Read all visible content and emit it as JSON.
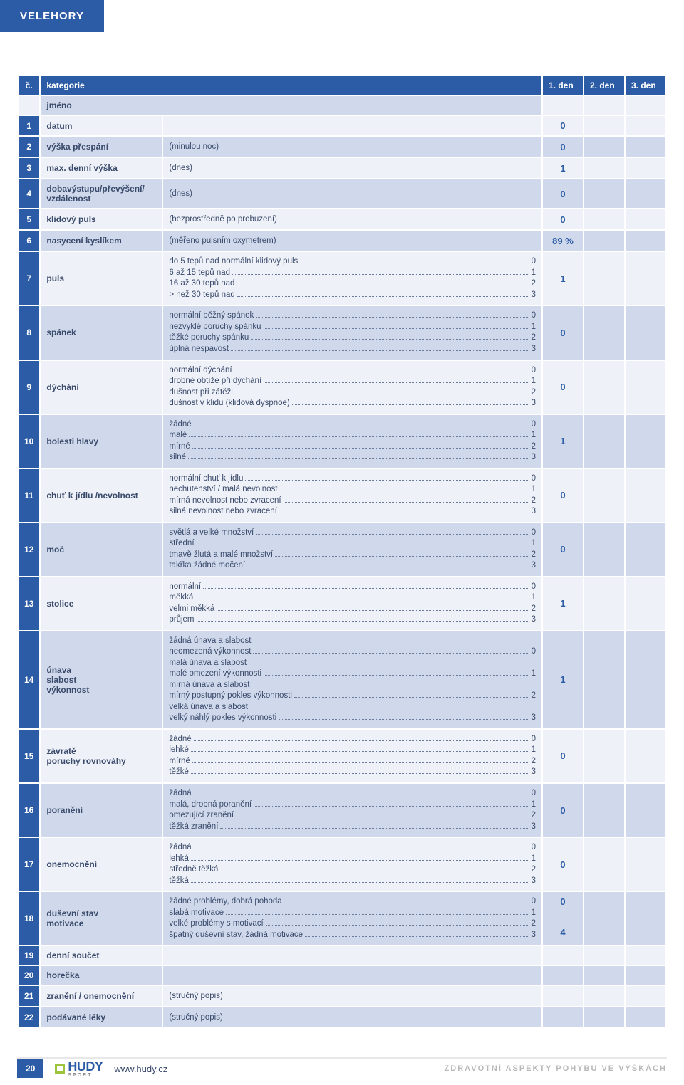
{
  "page_title": "VELEHORY",
  "header": {
    "c": "č.",
    "kat": "kategorie",
    "d1": "1. den",
    "d2": "2. den",
    "d3": "3. den"
  },
  "jmeno": "jméno",
  "rows": [
    {
      "n": "1",
      "cat": "datum",
      "desc_plain": "",
      "val": "0"
    },
    {
      "n": "2",
      "cat": "výška přespání",
      "desc_plain": "(minulou noc)",
      "val": "0"
    },
    {
      "n": "3",
      "cat": "max. denní výška",
      "desc_plain": "(dnes)",
      "val": "1"
    },
    {
      "n": "4",
      "cat": "dobavýstupu/převýšení/\nvzdálenost",
      "desc_plain": "(dnes)",
      "val": "0"
    },
    {
      "n": "5",
      "cat": "klidový puls",
      "desc_plain": "(bezprostředně po probuzení)",
      "val": "0"
    },
    {
      "n": "6",
      "cat": "nasycení kyslíkem",
      "desc_plain": "(měřeno pulsním oxymetrem)",
      "val": "89 %"
    },
    {
      "n": "7",
      "cat": "puls",
      "lines": [
        {
          "l": "do 5 tepů nad normální klidový puls",
          "v": "0"
        },
        {
          "l": "6 až 15 tepů nad",
          "v": "1"
        },
        {
          "l": "16 až 30 tepů nad",
          "v": "2"
        },
        {
          "l": "> než 30 tepů nad",
          "v": "3"
        }
      ],
      "val": "1"
    },
    {
      "n": "8",
      "cat": "spánek",
      "lines": [
        {
          "l": "normální běžný spánek",
          "v": "0"
        },
        {
          "l": "nezvyklé poruchy spánku",
          "v": "1"
        },
        {
          "l": "těžké poruchy spánku",
          "v": "2"
        },
        {
          "l": "úplná nespavost",
          "v": "3"
        }
      ],
      "val": "0"
    },
    {
      "n": "9",
      "cat": "dýchání",
      "lines": [
        {
          "l": "normální dýchání",
          "v": "0"
        },
        {
          "l": "drobné obtíže při dýchání",
          "v": "1"
        },
        {
          "l": "dušnost při zátěži",
          "v": "2"
        },
        {
          "l": "dušnost v klidu (klidová dyspnoe)",
          "v": "3"
        }
      ],
      "val": "0"
    },
    {
      "n": "10",
      "cat": "bolesti hlavy",
      "lines": [
        {
          "l": "žádné",
          "v": "0"
        },
        {
          "l": "malé",
          "v": "1"
        },
        {
          "l": "mírné",
          "v": "2"
        },
        {
          "l": "silné",
          "v": "3"
        }
      ],
      "val": "1"
    },
    {
      "n": "11",
      "cat": "chuť k jídlu /nevolnost",
      "lines": [
        {
          "l": "normální chuť k jídlu",
          "v": "0"
        },
        {
          "l": "nechutenství / malá nevolnost",
          "v": "1"
        },
        {
          "l": "mírná nevolnost nebo zvracení",
          "v": "2"
        },
        {
          "l": "silná nevolnost nebo zvracení",
          "v": "3"
        }
      ],
      "val": "0"
    },
    {
      "n": "12",
      "cat": "moč",
      "lines": [
        {
          "l": "světlá a velké množství",
          "v": "0"
        },
        {
          "l": "střední",
          "v": "1"
        },
        {
          "l": "tmavě žlutá a malé množství",
          "v": "2"
        },
        {
          "l": "takřka žádné močení",
          "v": "3"
        }
      ],
      "val": "0"
    },
    {
      "n": "13",
      "cat": "stolice",
      "lines": [
        {
          "l": "normální",
          "v": "0"
        },
        {
          "l": "měkká",
          "v": "1"
        },
        {
          "l": "velmi měkká",
          "v": "2"
        },
        {
          "l": "průjem",
          "v": "3"
        }
      ],
      "val": "1"
    },
    {
      "n": "14",
      "cat": "únava\nslabost\nvýkonnost",
      "mixed": [
        {
          "plain": "žádná únava a slabost"
        },
        {
          "l": "neomezená výkonnost",
          "v": "0"
        },
        {
          "plain": "malá únava a slabost"
        },
        {
          "l": "malé omezení výkonnosti",
          "v": "1"
        },
        {
          "plain": "mírná únava a slabost"
        },
        {
          "l": "mírný postupný pokles výkonnosti",
          "v": "2"
        },
        {
          "plain": "velká únava a slabost"
        },
        {
          "l": "velký náhlý pokles výkonnosti",
          "v": "3"
        }
      ],
      "val": "1"
    },
    {
      "n": "15",
      "cat": "závratě\nporuchy rovnováhy",
      "lines": [
        {
          "l": "žádné",
          "v": "0"
        },
        {
          "l": "lehké",
          "v": "1"
        },
        {
          "l": "mírné",
          "v": "2"
        },
        {
          "l": "těžké",
          "v": "3"
        }
      ],
      "val": "0"
    },
    {
      "n": "16",
      "cat": "poranění",
      "lines": [
        {
          "l": "žádná",
          "v": "0"
        },
        {
          "l": "malá, drobná poranění",
          "v": "1"
        },
        {
          "l": "omezující zranění",
          "v": "2"
        },
        {
          "l": "těžká zranění",
          "v": "3"
        }
      ],
      "val": "0"
    },
    {
      "n": "17",
      "cat": "onemocnění",
      "lines": [
        {
          "l": "žádná",
          "v": "0"
        },
        {
          "l": "lehká",
          "v": "1"
        },
        {
          "l": "středně těžká",
          "v": "2"
        },
        {
          "l": "těžká",
          "v": "3"
        }
      ],
      "val": "0"
    },
    {
      "n": "18",
      "cat": "duševní stav\nmotivace",
      "lines": [
        {
          "l": "žádné problémy, dobrá pohoda",
          "v": "0"
        },
        {
          "l": "slabá motivace",
          "v": "1"
        },
        {
          "l": "velké problémy s motivací",
          "v": "2"
        },
        {
          "l": "špatný duševní stav, žádná motivace",
          "v": "3"
        }
      ],
      "val": "0",
      "val_b": "4"
    },
    {
      "n": "19",
      "cat": "denní součet",
      "desc_plain": "",
      "val": ""
    },
    {
      "n": "20",
      "cat": "horečka",
      "desc_plain": "",
      "val": ""
    },
    {
      "n": "21",
      "cat": "zranění / onemocnění",
      "desc_plain": "(stručný popis)",
      "val": ""
    },
    {
      "n": "22",
      "cat": "podávané léky",
      "desc_plain": "(stručný popis)",
      "val": ""
    }
  ],
  "footer": {
    "page": "20",
    "logo_text": "HUDY",
    "logo_sub": "SPORT",
    "url": "www.hudy.cz",
    "right": "ZDRAVOTNÍ ASPEKTY POHYBU  VE VÝŠKÁCH"
  }
}
